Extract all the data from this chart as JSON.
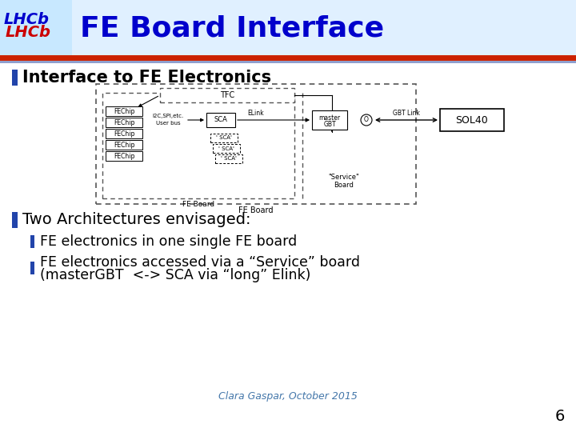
{
  "title": "FE Board Interface",
  "title_color": "#0000CC",
  "title_fontsize": 26,
  "bg_color": "#FFFFFF",
  "header_bg": "#E0F0FF",
  "red_line_color": "#CC0000",
  "blue_line_color": "#1E3A8A",
  "blue_bar_color": "#2244AA",
  "bullet1": "Interface to FE Electronics",
  "bullet2": "Two Architectures envisaged:",
  "sub_bullet1": "FE electronics in one single FE board",
  "sub_bullet2_line1": "FE electronics accessed via a “Service” board",
  "sub_bullet2_line2": "(masterGBT  <-> SCA via “long” Elink)",
  "footer": "Clara Gaspar, October 2015",
  "footer_color": "#4477AA",
  "page_num": "6",
  "lhcb_blue": "#0000CC",
  "lhcb_red": "#CC0000"
}
